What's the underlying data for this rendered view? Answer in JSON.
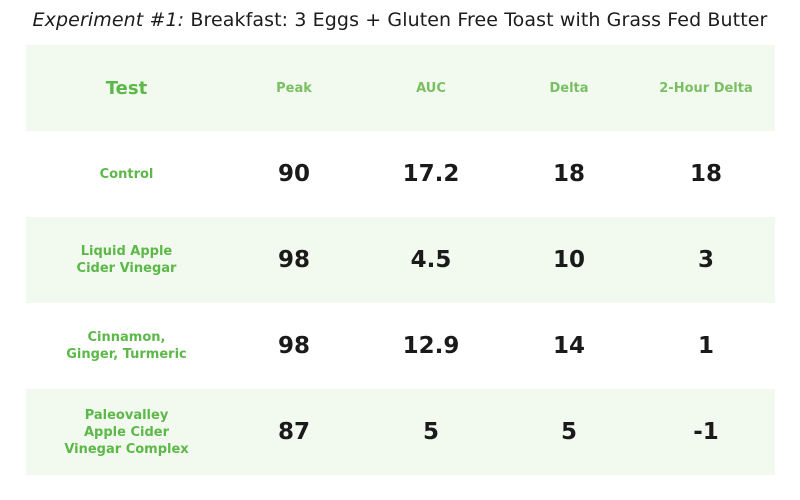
{
  "title": {
    "lead": "Experiment #1:",
    "rest": " Breakfast: 3 Eggs + Gluten Free Toast with Grass Fed Butter"
  },
  "columns": [
    "Test",
    "Peak",
    "AUC",
    "Delta",
    "2-Hour Delta"
  ],
  "rows": [
    {
      "test": "Control",
      "values": [
        "90",
        "17.2",
        "18",
        "18"
      ]
    },
    {
      "test": "Liquid Apple\nCider Vinegar",
      "values": [
        "98",
        "4.5",
        "10",
        "3"
      ]
    },
    {
      "test": "Cinnamon,\nGinger, Turmeric",
      "values": [
        "98",
        "12.9",
        "14",
        "1"
      ]
    },
    {
      "test": "Paleovalley\nApple Cider\nVinegar Complex",
      "values": [
        "87",
        "5",
        "5",
        "-1"
      ]
    }
  ],
  "colors": {
    "accent_green": "#5cb849",
    "header_green": "#7ac063",
    "row_shade": "#f2f9ef",
    "value_text": "#1a1a1a"
  }
}
